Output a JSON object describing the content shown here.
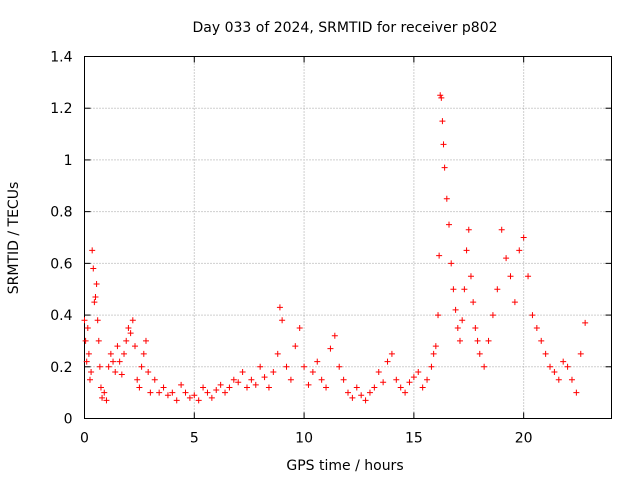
{
  "chart_data": {
    "type": "scatter",
    "title": "Day 033 of 2024, SRMTID for receiver p802",
    "xlabel": "GPS time / hours",
    "ylabel": "SRMTID / TECUs",
    "xlim": [
      0,
      24
    ],
    "ylim": [
      0,
      1.4
    ],
    "xticks": [
      0,
      5,
      10,
      15,
      20
    ],
    "xtick_labels": [
      "0",
      "5",
      "10",
      "15",
      "20"
    ],
    "yticks": [
      0,
      0.2,
      0.4,
      0.6,
      0.8,
      1.0,
      1.2,
      1.4
    ],
    "ytick_labels": [
      "0",
      "0.2",
      "0.4",
      "0.6",
      "0.8",
      "1",
      "1.2",
      "1.4"
    ],
    "grid": true,
    "marker": "+",
    "color": "#ff0000",
    "series": [
      {
        "name": "SRMTID",
        "x": [
          0.0,
          0.05,
          0.1,
          0.15,
          0.2,
          0.25,
          0.3,
          0.35,
          0.4,
          0.45,
          0.5,
          0.55,
          0.6,
          0.65,
          0.7,
          0.75,
          0.8,
          0.9,
          1.0,
          1.1,
          1.2,
          1.3,
          1.4,
          1.5,
          1.6,
          1.7,
          1.8,
          1.9,
          2.0,
          2.1,
          2.2,
          2.3,
          2.4,
          2.5,
          2.6,
          2.7,
          2.8,
          2.9,
          3.0,
          3.2,
          3.4,
          3.6,
          3.8,
          4.0,
          4.2,
          4.4,
          4.6,
          4.8,
          5.0,
          5.2,
          5.4,
          5.6,
          5.8,
          6.0,
          6.2,
          6.4,
          6.6,
          6.8,
          7.0,
          7.2,
          7.4,
          7.6,
          7.8,
          8.0,
          8.2,
          8.4,
          8.6,
          8.8,
          8.9,
          9.0,
          9.2,
          9.4,
          9.6,
          9.8,
          10.0,
          10.2,
          10.4,
          10.6,
          10.8,
          11.0,
          11.2,
          11.4,
          11.6,
          11.8,
          12.0,
          12.2,
          12.4,
          12.6,
          12.8,
          13.0,
          13.2,
          13.4,
          13.6,
          13.8,
          14.0,
          14.2,
          14.4,
          14.6,
          14.8,
          15.0,
          15.2,
          15.4,
          15.6,
          15.8,
          15.9,
          16.0,
          16.1,
          16.15,
          16.2,
          16.25,
          16.3,
          16.35,
          16.4,
          16.5,
          16.6,
          16.7,
          16.8,
          16.9,
          17.0,
          17.1,
          17.2,
          17.3,
          17.4,
          17.5,
          17.6,
          17.7,
          17.8,
          17.9,
          18.0,
          18.2,
          18.4,
          18.6,
          18.8,
          19.0,
          19.2,
          19.4,
          19.6,
          19.8,
          20.0,
          20.2,
          20.4,
          20.6,
          20.8,
          21.0,
          21.2,
          21.4,
          21.6,
          21.8,
          22.0,
          22.2,
          22.4,
          22.6,
          22.8
        ],
        "y": [
          0.38,
          0.3,
          0.22,
          0.35,
          0.25,
          0.15,
          0.18,
          0.65,
          0.58,
          0.45,
          0.47,
          0.52,
          0.38,
          0.3,
          0.2,
          0.12,
          0.08,
          0.1,
          0.07,
          0.2,
          0.25,
          0.22,
          0.18,
          0.28,
          0.22,
          0.17,
          0.25,
          0.3,
          0.35,
          0.33,
          0.38,
          0.28,
          0.15,
          0.12,
          0.2,
          0.25,
          0.3,
          0.18,
          0.1,
          0.15,
          0.1,
          0.12,
          0.09,
          0.1,
          0.07,
          0.13,
          0.1,
          0.08,
          0.09,
          0.07,
          0.12,
          0.1,
          0.08,
          0.11,
          0.13,
          0.1,
          0.12,
          0.15,
          0.14,
          0.18,
          0.12,
          0.15,
          0.13,
          0.2,
          0.16,
          0.12,
          0.18,
          0.25,
          0.43,
          0.38,
          0.2,
          0.15,
          0.28,
          0.35,
          0.2,
          0.13,
          0.18,
          0.22,
          0.15,
          0.12,
          0.27,
          0.32,
          0.2,
          0.15,
          0.1,
          0.08,
          0.12,
          0.09,
          0.07,
          0.1,
          0.12,
          0.18,
          0.14,
          0.22,
          0.25,
          0.15,
          0.12,
          0.1,
          0.14,
          0.16,
          0.18,
          0.12,
          0.15,
          0.2,
          0.25,
          0.28,
          0.4,
          0.63,
          1.25,
          1.24,
          1.15,
          1.06,
          0.97,
          0.85,
          0.75,
          0.6,
          0.5,
          0.42,
          0.35,
          0.3,
          0.38,
          0.5,
          0.65,
          0.73,
          0.55,
          0.45,
          0.35,
          0.3,
          0.25,
          0.2,
          0.3,
          0.4,
          0.5,
          0.73,
          0.62,
          0.55,
          0.45,
          0.65,
          0.7,
          0.55,
          0.4,
          0.35,
          0.3,
          0.25,
          0.2,
          0.18,
          0.15,
          0.22,
          0.2,
          0.15,
          0.1,
          0.25,
          0.37
        ]
      }
    ]
  }
}
